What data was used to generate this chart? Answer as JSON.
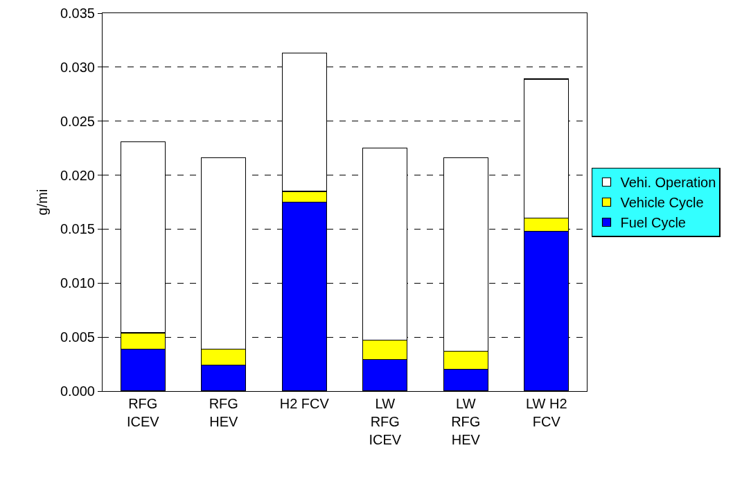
{
  "chart_data": {
    "type": "bar",
    "stacked": true,
    "ylabel": "g/mi",
    "categories": [
      "RFG\nICEV",
      "RFG\nHEV",
      "H2 FCV",
      "LW\nRFG\nICEV",
      "LW\nRFG\nHEV",
      "LW H2\nFCV"
    ],
    "series": [
      {
        "name": "Fuel Cycle",
        "color": "#0000ff",
        "values": [
          0.0039,
          0.0024,
          0.0175,
          0.0029,
          0.002,
          0.0148
        ]
      },
      {
        "name": "Vehicle Cycle",
        "color": "#ffff00",
        "values": [
          0.0015,
          0.0015,
          0.001,
          0.0018,
          0.0017,
          0.0012
        ]
      },
      {
        "name": "Vehi. Operation",
        "color": "#ffffff",
        "values": [
          0.0177,
          0.0177,
          0.0128,
          0.0178,
          0.0179,
          0.0129
        ]
      }
    ],
    "ylim": [
      0,
      0.035
    ],
    "yticks": [
      {
        "value": 0,
        "label": "0.000"
      },
      {
        "value": 0.005,
        "label": "0.005"
      },
      {
        "value": 0.01,
        "label": "0.010"
      },
      {
        "value": 0.015,
        "label": "0.015"
      },
      {
        "value": 0.02,
        "label": "0.020"
      },
      {
        "value": 0.025,
        "label": "0.025"
      },
      {
        "value": 0.03,
        "label": "0.030"
      },
      {
        "value": 0.035,
        "label": "0.035"
      }
    ],
    "grid": "y",
    "legend": "right"
  }
}
